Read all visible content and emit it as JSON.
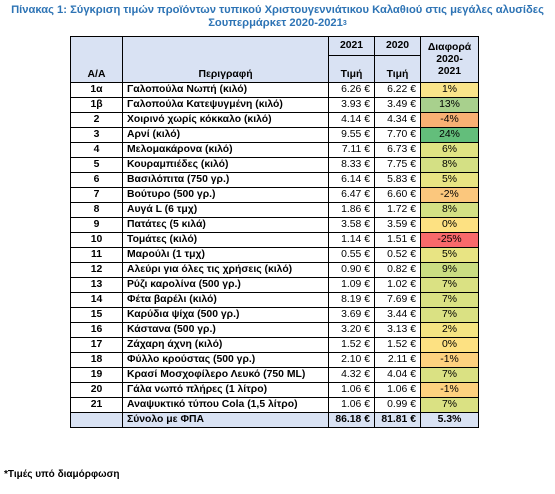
{
  "title": {
    "line1": "Πίνακας 1: Σύγκριση τιμών προϊόντων τυπικού Χριστουγεννιάτικου Καλαθιού στις μεγάλες αλυσίδες",
    "line2": "Σουπερμάρκετ 2020-2021",
    "footnote_ref": "3"
  },
  "table": {
    "headers": {
      "aa": "Α/Α",
      "description": "Περιγραφή",
      "year_2021": "2021",
      "year_2020": "2020",
      "price_2021": "Τιμή",
      "price_2020": "Τιμή",
      "diff_line1": "Διαφορά",
      "diff_line2": "2020-",
      "diff_line3": "2021"
    },
    "rows": [
      {
        "aa": "1α",
        "description": "Γαλοπούλα Νωπή (κιλό)",
        "p2021": "6.26 €",
        "p2020": "6.22 €",
        "diff": "1%",
        "color": "#f9e48a"
      },
      {
        "aa": "1β",
        "description": "Γαλοπούλα Κατεψυγμένη (κιλό)",
        "p2021": "3.93 €",
        "p2020": "3.49 €",
        "diff": "13%",
        "color": "#a8d08d"
      },
      {
        "aa": "2",
        "description": "Χοιρινό χωρίς κόκκαλο (κιλό)",
        "p2021": "4.14 €",
        "p2020": "4.34 €",
        "diff": "-4%",
        "color": "#f8b074"
      },
      {
        "aa": "3",
        "description": "Αρνί (κιλό)",
        "p2021": "9.55 €",
        "p2020": "7.70 €",
        "diff": "24%",
        "color": "#63be7b"
      },
      {
        "aa": "4",
        "description": "Μελομακάρονα (κιλό)",
        "p2021": "7.11 €",
        "p2020": "6.73 €",
        "diff": "6%",
        "color": "#e0e383"
      },
      {
        "aa": "5",
        "description": "Κουραμπιέδες (κιλό)",
        "p2021": "8.33 €",
        "p2020": "7.75 €",
        "diff": "8%",
        "color": "#d4e084"
      },
      {
        "aa": "6",
        "description": "Βασιλόπιτα (750 γρ.)",
        "p2021": "6.14 €",
        "p2020": "5.83 €",
        "diff": "5%",
        "color": "#e8e483"
      },
      {
        "aa": "7",
        "description": "Βούτυρο (500 γρ.)",
        "p2021": "6.47 €",
        "p2020": "6.60 €",
        "diff": "-2%",
        "color": "#fbc77d"
      },
      {
        "aa": "8",
        "description": "Αυγά L (6 τμχ)",
        "p2021": "1.86 €",
        "p2020": "1.72 €",
        "diff": "8%",
        "color": "#d4e084"
      },
      {
        "aa": "9",
        "description": "Πατάτες (5 κιλά)",
        "p2021": "3.58 €",
        "p2020": "3.59 €",
        "diff": "0%",
        "color": "#fde182"
      },
      {
        "aa": "10",
        "description": "Τομάτες (κιλό)",
        "p2021": "1.14 €",
        "p2020": "1.51 €",
        "diff": "-25%",
        "color": "#f8696b"
      },
      {
        "aa": "11",
        "description": "Μαρούλι (1 τμχ)",
        "p2021": "0.55 €",
        "p2020": "0.52 €",
        "diff": "5%",
        "color": "#e8e483"
      },
      {
        "aa": "12",
        "description": "Αλεύρι για όλες τις χρήσεις (κιλό)",
        "p2021": "0.90 €",
        "p2020": "0.82 €",
        "diff": "9%",
        "color": "#cadd82"
      },
      {
        "aa": "13",
        "description": "Ρύζι καρολίνα (500 γρ.)",
        "p2021": "1.09 €",
        "p2020": "1.02 €",
        "diff": "7%",
        "color": "#dae183"
      },
      {
        "aa": "14",
        "description": "Φέτα βαρέλι (κιλό)",
        "p2021": "8.19 €",
        "p2020": "7.69 €",
        "diff": "7%",
        "color": "#dae183"
      },
      {
        "aa": "15",
        "description": "Καρύδια ψίχα (500 γρ.)",
        "p2021": "3.69 €",
        "p2020": "3.44 €",
        "diff": "7%",
        "color": "#dae183"
      },
      {
        "aa": "16",
        "description": "Κάστανα (500 γρ.)",
        "p2021": "3.20 €",
        "p2020": "3.13 €",
        "diff": "2%",
        "color": "#f4e482"
      },
      {
        "aa": "17",
        "description": "Ζάχαρη άχνη (κιλό)",
        "p2021": "1.52 €",
        "p2020": "1.52 €",
        "diff": "0%",
        "color": "#fde182"
      },
      {
        "aa": "18",
        "description": "Φύλλο κρούστας (500 γρ.)",
        "p2021": "2.10 €",
        "p2020": "2.11 €",
        "diff": "-1%",
        "color": "#fdd17f"
      },
      {
        "aa": "19",
        "description": "Κρασί Μοσχοφίλερο Λευκό (750 ML)",
        "p2021": "4.32 €",
        "p2020": "4.04 €",
        "diff": "7%",
        "color": "#dae183"
      },
      {
        "aa": "20",
        "description": "Γάλα νωπό πλήρες (1 λίτρο)",
        "p2021": "1.06 €",
        "p2020": "1.06 €",
        "diff": "-1%",
        "color": "#fdd17f"
      },
      {
        "aa": "21",
        "description": "Αναψυκτικό τύπου Cola (1,5 λίτρο)",
        "p2021": "1.06 €",
        "p2020": "0.99 €",
        "diff": "7%",
        "color": "#dae183"
      }
    ],
    "total": {
      "label": "Σύνολο με ΦΠΑ",
      "p2021": "86.18 €",
      "p2020": "81.81 €",
      "diff": "5.3%"
    }
  },
  "footnote": "*Τιμές υπό διαμόρφωση"
}
